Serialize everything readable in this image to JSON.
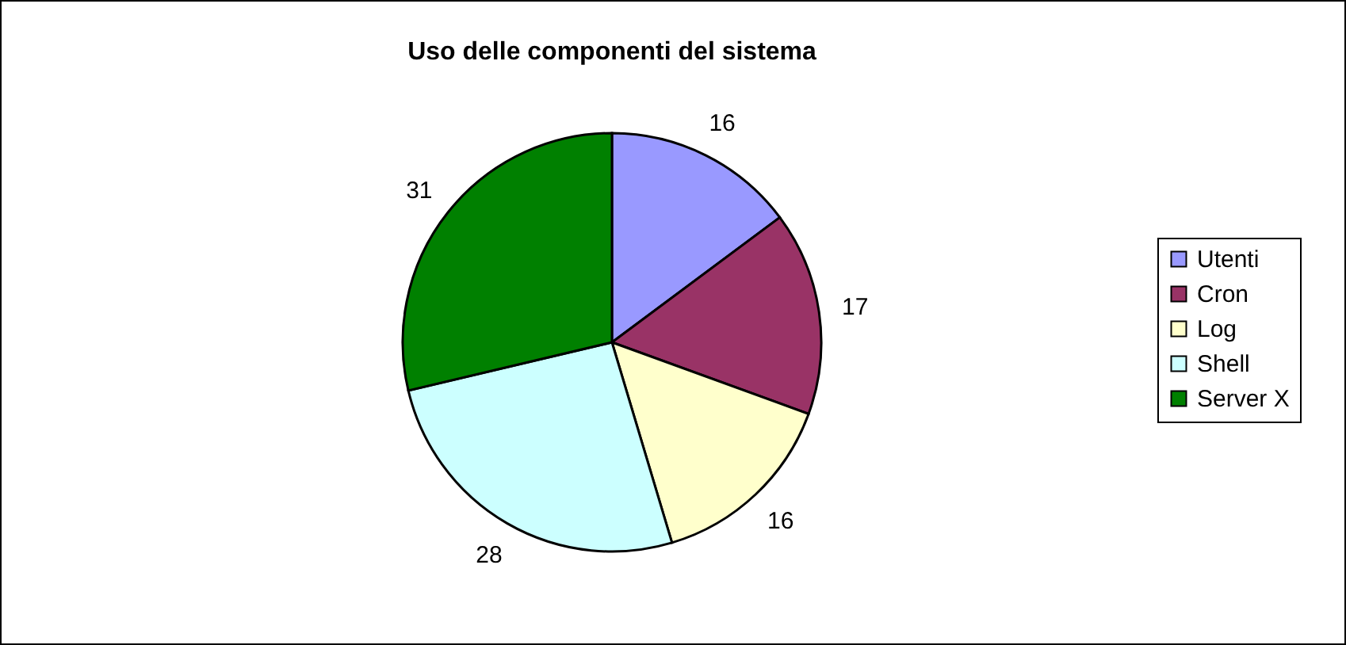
{
  "chart_data": {
    "type": "pie",
    "title": "Uso delle componenti del sistema",
    "categories": [
      "Utenti",
      "Cron",
      "Log",
      "Shell",
      "Server X"
    ],
    "values": [
      16,
      17,
      16,
      28,
      31
    ],
    "colors": [
      "#9999ff",
      "#993366",
      "#ffffcc",
      "#ccffff",
      "#008000"
    ],
    "data_labels": true,
    "legend": "right"
  }
}
